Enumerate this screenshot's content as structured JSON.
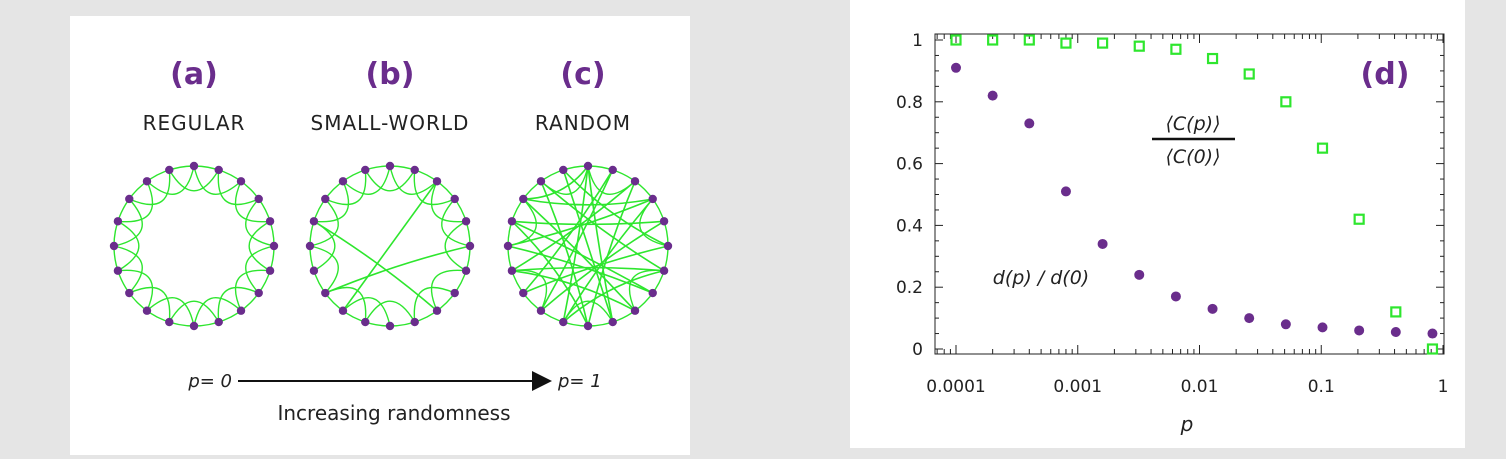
{
  "colors": {
    "purple": "#6a2d8c",
    "green": "#2ee62e",
    "background": "#e5e5e5",
    "panel": "#ffffff"
  },
  "diagram": {
    "panels": [
      {
        "label": "(a)",
        "name": "REGULAR"
      },
      {
        "label": "(b)",
        "name": "SMALL-WORLD"
      },
      {
        "label": "(c)",
        "name": "RANDOM"
      }
    ],
    "arrow_start": "p= 0",
    "arrow_end": "p= 1",
    "arrow_caption": "Increasing randomness"
  },
  "chart_data": {
    "type": "scatter",
    "panel_label": "(d)",
    "xlabel": "p",
    "ylabel": "",
    "x_scale": "log",
    "xlim": [
      0.0001,
      1
    ],
    "ylim": [
      0,
      1
    ],
    "x_ticks": [
      "0.0001",
      "0.001",
      "0.01",
      "0.1",
      "1"
    ],
    "y_ticks": [
      "0",
      "0.2",
      "0.4",
      "0.6",
      "0.8",
      "1"
    ],
    "series": [
      {
        "name": "⟨C(p)⟩ / ⟨C(0)⟩",
        "name_numerator": "⟨C(p)⟩",
        "name_denominator": "⟨C(0)⟩",
        "marker": "open-square",
        "color": "#2ee62e",
        "x": [
          0.0001,
          0.0002,
          0.0004,
          0.0008,
          0.0016,
          0.0032,
          0.0064,
          0.0128,
          0.0256,
          0.0512,
          0.1024,
          0.2048,
          0.4096,
          0.8192
        ],
        "y": [
          1.0,
          1.0,
          1.0,
          0.99,
          0.99,
          0.98,
          0.97,
          0.94,
          0.89,
          0.8,
          0.65,
          0.42,
          0.12,
          0.0
        ]
      },
      {
        "name": "d(p) / d(0)",
        "marker": "filled-circle",
        "color": "#6a2d8c",
        "x": [
          0.0001,
          0.0002,
          0.0004,
          0.0008,
          0.0016,
          0.0032,
          0.0064,
          0.0128,
          0.0256,
          0.0512,
          0.1024,
          0.2048,
          0.4096,
          0.8192
        ],
        "y": [
          0.91,
          0.82,
          0.73,
          0.51,
          0.34,
          0.24,
          0.17,
          0.13,
          0.1,
          0.08,
          0.07,
          0.06,
          0.055,
          0.05
        ]
      }
    ]
  }
}
